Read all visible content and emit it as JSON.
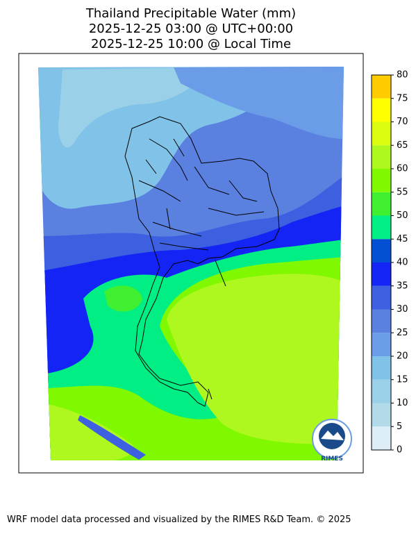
{
  "header": {
    "title_lines": [
      "Thailand Precipitable Water (mm)",
      "2025-12-25 03:00 @ UTC+00:00",
      "2025-12-25 10:00 @ Local Time"
    ]
  },
  "colorbar": {
    "ticks": [
      0,
      5,
      10,
      15,
      20,
      25,
      30,
      35,
      40,
      45,
      50,
      55,
      60,
      65,
      70,
      75,
      80
    ],
    "colors": [
      "#ddeef8",
      "#b2dae8",
      "#9ad0e8",
      "#80c2e8",
      "#6a9ce8",
      "#5a80e0",
      "#3c60e0",
      "#1424f4",
      "#0450d4",
      "#00ee84",
      "#40f030",
      "#80f800",
      "#aef820",
      "#dcfc10",
      "#ffff00",
      "#ffcc00"
    ]
  },
  "logo": {
    "label": "RIMES"
  },
  "footer": {
    "text": "WRF model data processed and visualized by the RIMES R&D Team. © 2025"
  }
}
